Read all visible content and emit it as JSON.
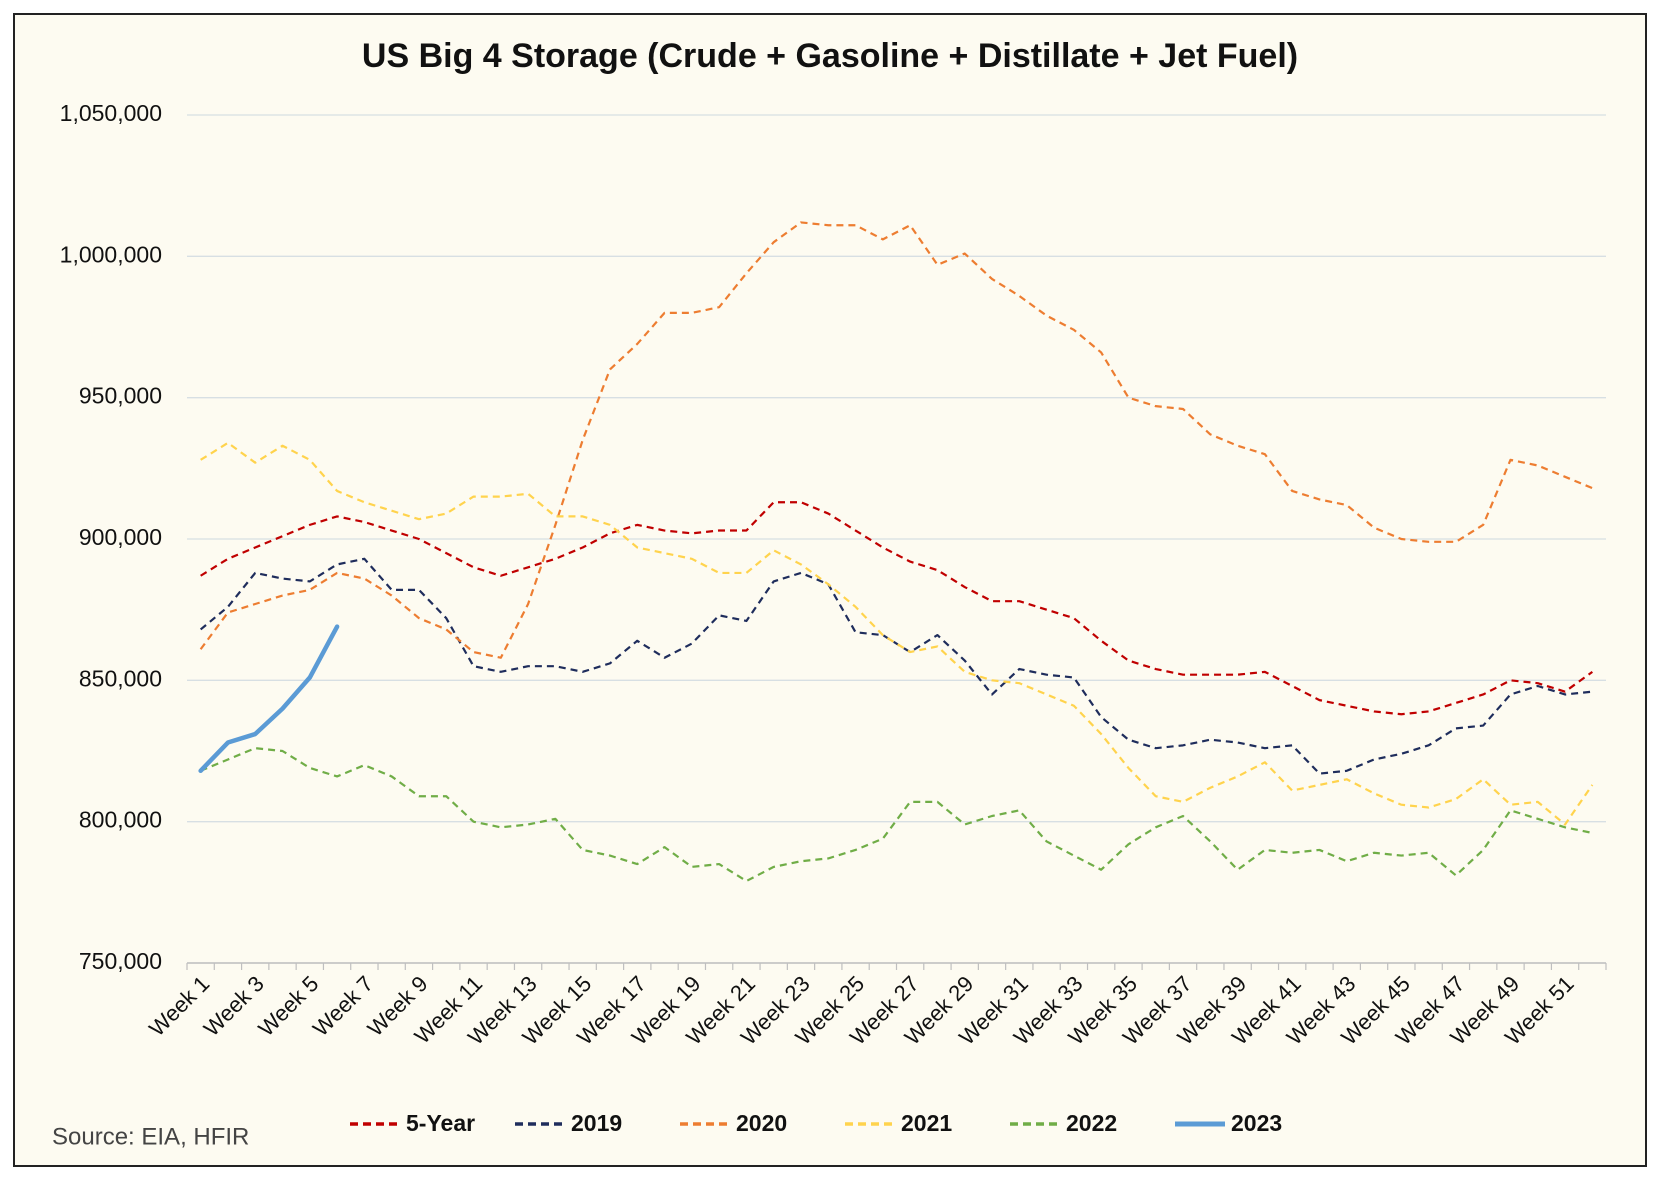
{
  "chart_data": {
    "type": "line",
    "title": "US Big 4 Storage (Crude + Gasoline + Distillate + Jet Fuel)",
    "source": "Source: EIA, HFIR",
    "categories": [
      "Week 1",
      null,
      "Week 3",
      null,
      "Week 5",
      null,
      "Week 7",
      null,
      "Week 9",
      null,
      "Week 11",
      null,
      "Week 13",
      null,
      "Week 15",
      null,
      "Week 17",
      null,
      "Week 19",
      null,
      "Week 21",
      null,
      "Week 23",
      null,
      "Week 25",
      null,
      "Week 27",
      null,
      "Week 29",
      null,
      "Week 31",
      null,
      "Week 33",
      null,
      "Week 35",
      null,
      "Week 37",
      null,
      "Week 39",
      null,
      "Week 41",
      null,
      "Week 43",
      null,
      "Week 45",
      null,
      "Week 47",
      null,
      "Week 49",
      null,
      "Week 51",
      null
    ],
    "ylim": [
      750000,
      1050000
    ],
    "yticks": [
      {
        "value": 750000,
        "label": "750,000"
      },
      {
        "value": 800000,
        "label": "800,000"
      },
      {
        "value": 850000,
        "label": "850,000"
      },
      {
        "value": 900000,
        "label": "900,000"
      },
      {
        "value": 950000,
        "label": "950,000"
      },
      {
        "value": 1000000,
        "label": "1,000,000"
      },
      {
        "value": 1050000,
        "label": "1,050,000"
      }
    ],
    "grid": true,
    "legend": "bottom",
    "series": [
      {
        "name": "5-Year",
        "color": "#c00000",
        "dashed": true,
        "values": [
          887000,
          893000,
          897000,
          901000,
          905000,
          908000,
          906000,
          903000,
          900000,
          895000,
          890000,
          887000,
          890000,
          893000,
          897000,
          902000,
          905000,
          903000,
          902000,
          903000,
          903000,
          913000,
          913000,
          909000,
          903000,
          897000,
          892000,
          889000,
          883000,
          878000,
          878000,
          875000,
          872000,
          864000,
          857000,
          854000,
          852000,
          852000,
          852000,
          853000,
          848000,
          843000,
          841000,
          839000,
          838000,
          839000,
          842000,
          845000,
          850000,
          849000,
          846000,
          853000
        ]
      },
      {
        "name": "2019",
        "color": "#1f2d5c",
        "dashed": true,
        "values": [
          868000,
          876000,
          888000,
          886000,
          885000,
          891000,
          893000,
          882000,
          882000,
          872000,
          855000,
          853000,
          855000,
          855000,
          853000,
          856000,
          864000,
          858000,
          863000,
          873000,
          871000,
          885000,
          888000,
          884000,
          867000,
          866000,
          860000,
          866000,
          857000,
          845000,
          854000,
          852000,
          851000,
          837000,
          829000,
          826000,
          827000,
          829000,
          828000,
          826000,
          827000,
          817000,
          818000,
          822000,
          824000,
          827000,
          833000,
          834000,
          845000,
          848000,
          845000,
          846000
        ]
      },
      {
        "name": "2020",
        "color": "#ed7d31",
        "dashed": true,
        "values": [
          861000,
          874000,
          877000,
          880000,
          882000,
          888000,
          886000,
          880000,
          872000,
          868000,
          860000,
          858000,
          877000,
          905000,
          935000,
          960000,
          969000,
          980000,
          980000,
          982000,
          994000,
          1005000,
          1012000,
          1011000,
          1011000,
          1006000,
          1011000,
          997000,
          1001000,
          992000,
          986000,
          979000,
          974000,
          966000,
          950000,
          947000,
          946000,
          937000,
          933000,
          930000,
          917000,
          914000,
          912000,
          904000,
          900000,
          899000,
          899000,
          905000,
          928000,
          926000,
          922000,
          918000
        ]
      },
      {
        "name": "2021",
        "color": "#ffd34d",
        "dashed": true,
        "values": [
          928000,
          934000,
          927000,
          933000,
          928000,
          917000,
          913000,
          910000,
          907000,
          909000,
          915000,
          915000,
          916000,
          908000,
          908000,
          905000,
          897000,
          895000,
          893000,
          888000,
          888000,
          896000,
          891000,
          884000,
          876000,
          866000,
          860000,
          862000,
          853000,
          850000,
          849000,
          845000,
          841000,
          831000,
          819000,
          809000,
          807000,
          812000,
          816000,
          821000,
          811000,
          813000,
          815000,
          810000,
          806000,
          805000,
          808000,
          815000,
          806000,
          807000,
          799000,
          813000
        ]
      },
      {
        "name": "2022",
        "color": "#70ad47",
        "dashed": true,
        "values": [
          818000,
          822000,
          826000,
          825000,
          819000,
          816000,
          820000,
          816000,
          809000,
          809000,
          800000,
          798000,
          799000,
          801000,
          790000,
          788000,
          785000,
          791000,
          784000,
          785000,
          779000,
          784000,
          786000,
          787000,
          790000,
          794000,
          807000,
          807000,
          799000,
          802000,
          804000,
          793000,
          788000,
          783000,
          792000,
          798000,
          802000,
          793000,
          783000,
          790000,
          789000,
          790000,
          786000,
          789000,
          788000,
          789000,
          781000,
          790000,
          804000,
          801000,
          798000,
          796000
        ]
      },
      {
        "name": "2023",
        "color": "#5b9bd5",
        "dashed": false,
        "values": [
          818000,
          828000,
          831000,
          840000,
          851000,
          869000,
          null,
          null,
          null,
          null,
          null,
          null,
          null,
          null,
          null,
          null,
          null,
          null,
          null,
          null,
          null,
          null,
          null,
          null,
          null,
          null,
          null,
          null,
          null,
          null,
          null,
          null,
          null,
          null,
          null,
          null,
          null,
          null,
          null,
          null,
          null,
          null,
          null,
          null,
          null,
          null,
          null,
          null,
          null,
          null,
          null,
          null
        ]
      }
    ]
  }
}
